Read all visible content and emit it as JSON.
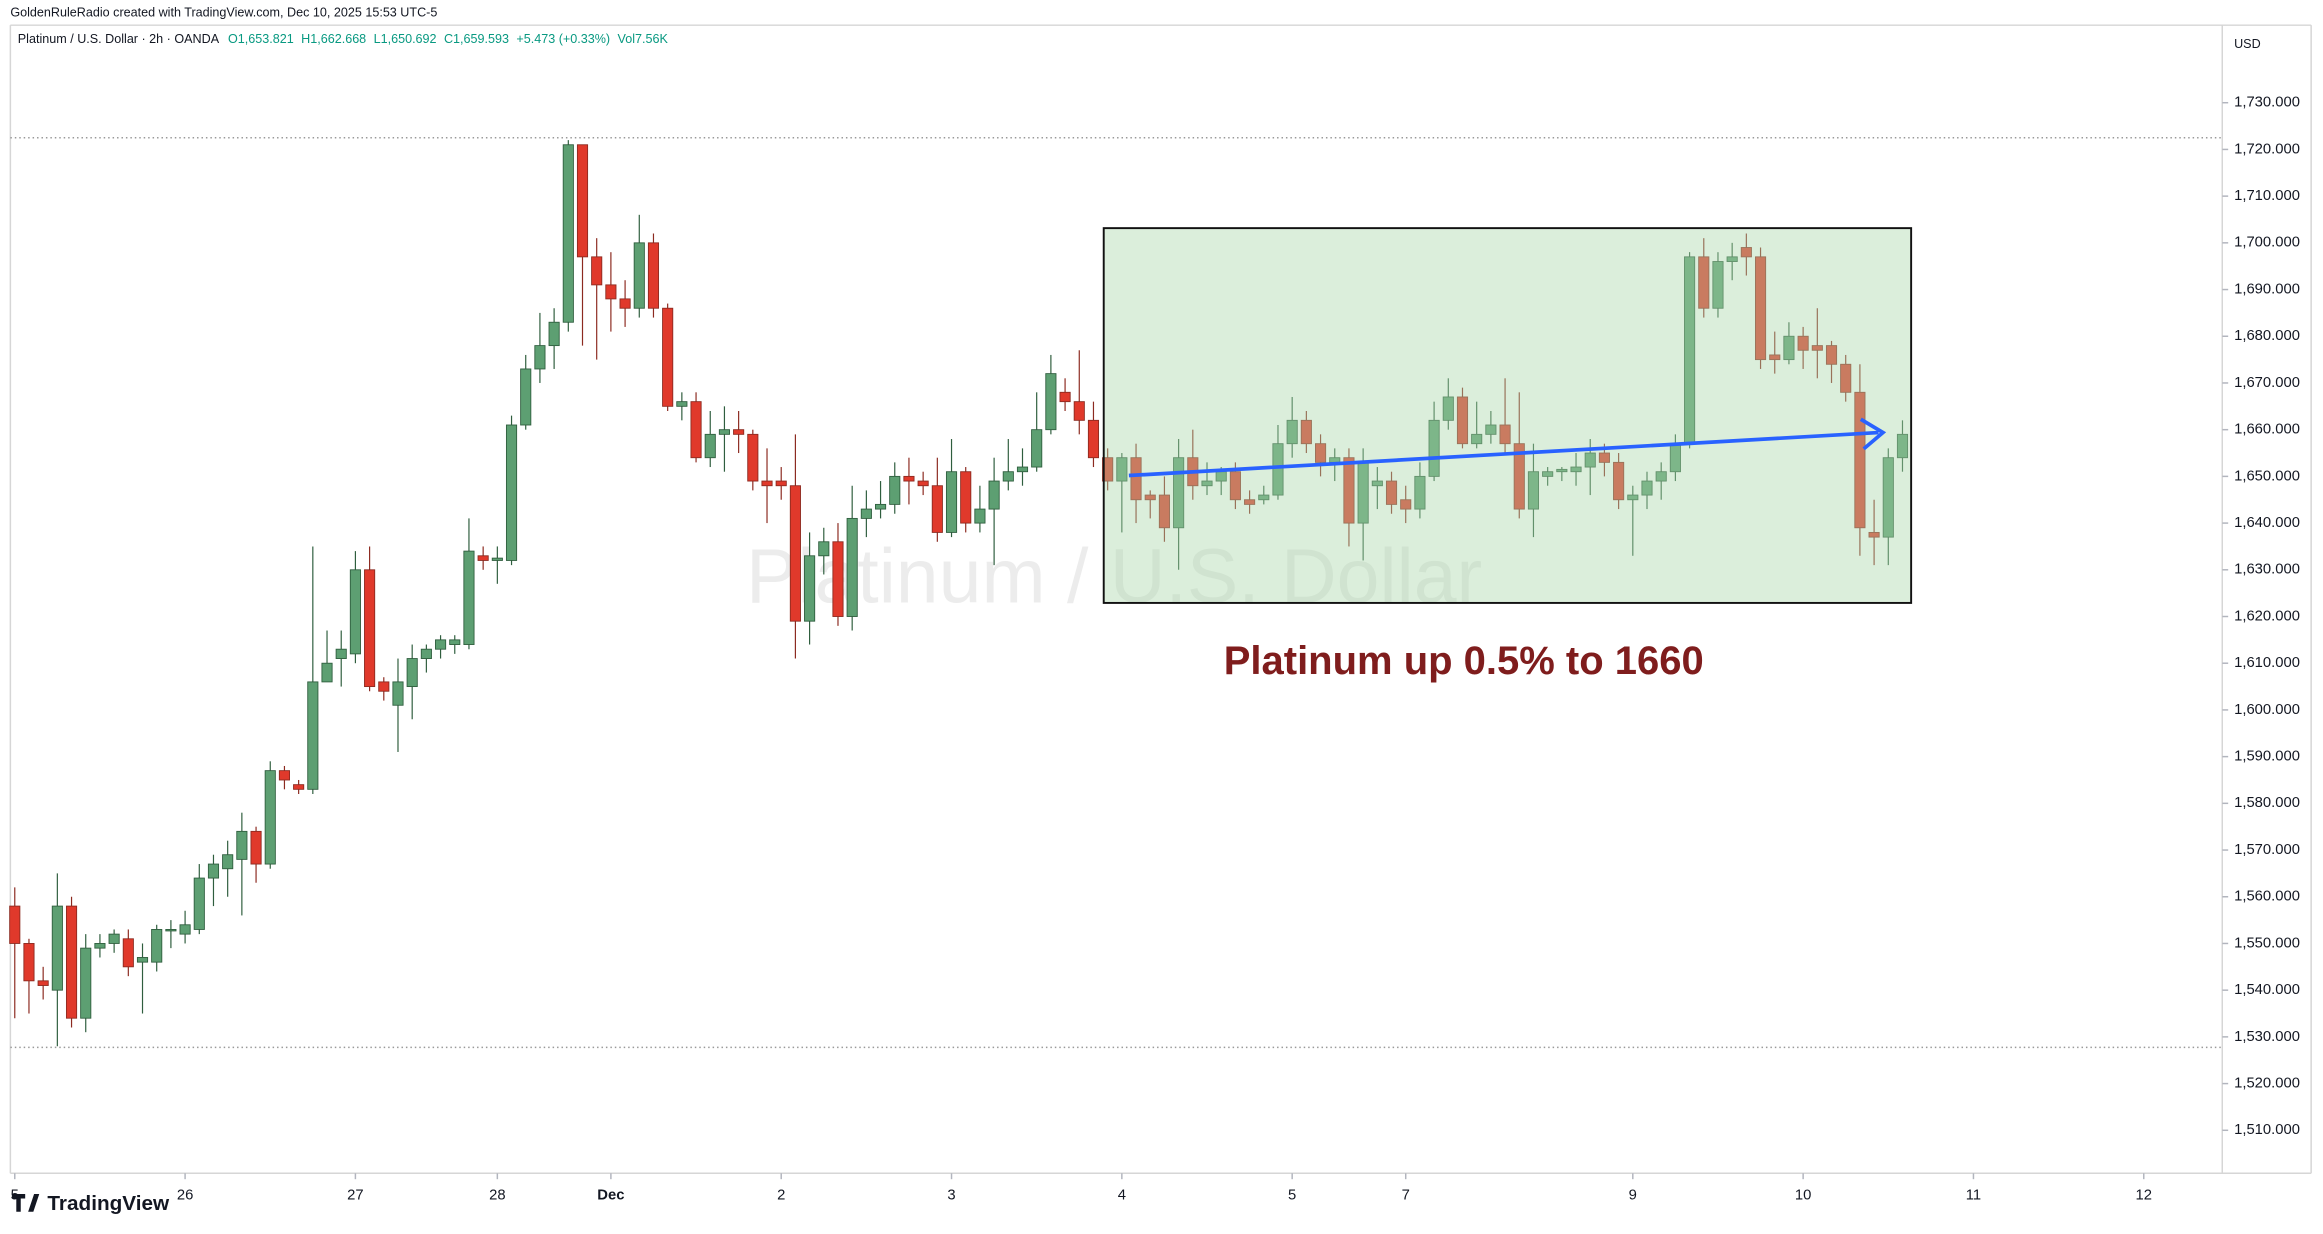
{
  "chart_data": {
    "type": "candlestick",
    "subtitle": "GoldenRuleRadio created with TradingView.com, Dec 10, 2025 15:53 UTC-5",
    "title": "Platinum / U.S. Dollar · 2h · OANDA",
    "legend_values": [
      "O1,653.821",
      "H1,662.668",
      "L1,650.692",
      "C1,659.593",
      "+5.473 (+0.33%)",
      "Vol7.56K"
    ],
    "watermark": "Platinum / U.S. Dollar",
    "annotation": "Platinum up 0.5% to 1660",
    "currency": "USD",
    "up_color": "#5d9f72",
    "down_color": "#e0392b",
    "open": [
      1558,
      1550,
      1542,
      1540,
      1558,
      1534,
      1549,
      1550,
      1551,
      1546,
      1546,
      1553,
      1552,
      1553,
      1564,
      1566,
      1568,
      1574,
      1567,
      1587,
      1584,
      1583,
      1606,
      1611,
      1612,
      1630,
      1606,
      1601,
      1605,
      1611,
      1613,
      1614,
      1614,
      1633,
      1632,
      1632,
      1661,
      1673,
      1678,
      1683,
      1721,
      1697,
      1691,
      1688,
      1686,
      1700,
      1686,
      1665,
      1666,
      1654,
      1659,
      1660,
      1659,
      1649,
      1649,
      1648,
      1619,
      1633,
      1636,
      1620,
      1641,
      1643,
      1644,
      1650,
      1649,
      1648,
      1638,
      1651,
      1640,
      1643,
      1649,
      1651,
      1652,
      1660,
      1668,
      1666,
      1662,
      1654,
      1649,
      1654,
      1646,
      1646,
      1639,
      1654,
      1648,
      1649,
      1651,
      1645,
      1645,
      1646,
      1657,
      1662,
      1657,
      1653,
      1654,
      1640,
      1648,
      1649,
      1645,
      1643,
      1650,
      1662,
      1667,
      1657,
      1659,
      1661,
      1657,
      1643,
      1650,
      1651,
      1651,
      1652,
      1655,
      1653,
      1645,
      1646,
      1649,
      1651,
      1657,
      1697,
      1686,
      1696,
      1699,
      1697,
      1676,
      1675,
      1680,
      1678,
      1678,
      1674,
      1668,
      1638,
      1637,
      1654
    ],
    "high": [
      1562,
      1551,
      1545,
      1565,
      1560,
      1552,
      1552,
      1553,
      1553,
      1550,
      1554,
      1555,
      1557,
      1567,
      1569,
      1572,
      1578,
      1575,
      1589,
      1588,
      1585,
      1635,
      1617,
      1617,
      1634,
      1635,
      1607,
      1611,
      1614,
      1614,
      1616,
      1616,
      1641,
      1635,
      1635,
      1663,
      1676,
      1685,
      1686,
      1722,
      1721,
      1701,
      1698,
      1692,
      1706,
      1702,
      1687,
      1668,
      1668,
      1664,
      1665,
      1664,
      1660,
      1656,
      1652,
      1659,
      1638,
      1639,
      1640,
      1648,
      1647,
      1649,
      1653,
      1654,
      1651,
      1654,
      1658,
      1652,
      1648,
      1654,
      1658,
      1656,
      1668,
      1676,
      1671,
      1677,
      1666,
      1656,
      1655,
      1657,
      1647,
      1650,
      1658,
      1660,
      1653,
      1652,
      1653,
      1647,
      1648,
      1661,
      1667,
      1664,
      1659,
      1656,
      1656,
      1656,
      1652,
      1651,
      1648,
      1653,
      1666,
      1671,
      1669,
      1666,
      1664,
      1671,
      1668,
      1657,
      1652,
      1652,
      1655,
      1658,
      1657,
      1655,
      1648,
      1651,
      1653,
      1659,
      1698,
      1701,
      1698,
      1700,
      1702,
      1699,
      1681,
      1683,
      1682,
      1686,
      1679,
      1676,
      1674,
      1645,
      1656,
      1662
    ],
    "low": [
      1534,
      1535,
      1538,
      1528,
      1532,
      1531,
      1547,
      1548,
      1543,
      1535,
      1544,
      1549,
      1550,
      1552,
      1558,
      1560,
      1556,
      1563,
      1566,
      1583,
      1582,
      1582,
      1606,
      1605,
      1610,
      1604,
      1602,
      1591,
      1598,
      1608,
      1611,
      1612,
      1613,
      1630,
      1627,
      1631,
      1660,
      1670,
      1673,
      1681,
      1678,
      1675,
      1681,
      1682,
      1684,
      1684,
      1664,
      1662,
      1653,
      1652,
      1651,
      1655,
      1647,
      1640,
      1645,
      1611,
      1614,
      1629,
      1618,
      1617,
      1637,
      1641,
      1642,
      1644,
      1646,
      1636,
      1637,
      1638,
      1638,
      1631,
      1647,
      1648,
      1651,
      1659,
      1664,
      1659,
      1652,
      1647,
      1638,
      1640,
      1641,
      1636,
      1630,
      1645,
      1646,
      1646,
      1643,
      1642,
      1644,
      1645,
      1654,
      1655,
      1650,
      1649,
      1635,
      1632,
      1643,
      1642,
      1640,
      1641,
      1649,
      1660,
      1656,
      1656,
      1657,
      1655,
      1641,
      1637,
      1648,
      1649,
      1648,
      1646,
      1650,
      1643,
      1633,
      1643,
      1645,
      1649,
      1656,
      1684,
      1684,
      1692,
      1693,
      1673,
      1672,
      1674,
      1673,
      1671,
      1670,
      1666,
      1633,
      1631,
      1631,
      1651
    ],
    "close": [
      1550,
      1542,
      1541,
      1558,
      1534,
      1549,
      1550,
      1552,
      1545,
      1547,
      1553,
      1553,
      1554,
      1564,
      1567,
      1569,
      1574,
      1567,
      1587,
      1585,
      1583,
      1606,
      1610,
      1613,
      1630,
      1605,
      1604,
      1606,
      1611,
      1613,
      1615,
      1615,
      1634,
      1632,
      1632.5,
      1661,
      1673,
      1678,
      1683,
      1721,
      1697,
      1691,
      1688,
      1686,
      1700,
      1686,
      1665,
      1666,
      1654,
      1659,
      1660,
      1659,
      1649,
      1648,
      1648,
      1619,
      1633,
      1636,
      1620,
      1641,
      1643,
      1644,
      1650,
      1649,
      1648,
      1638,
      1651,
      1640,
      1643,
      1649,
      1651,
      1652,
      1660,
      1672,
      1666,
      1662,
      1654,
      1649,
      1654,
      1645,
      1645,
      1639,
      1654,
      1648,
      1649,
      1651,
      1645,
      1644,
      1646,
      1657,
      1662,
      1657,
      1653,
      1654,
      1640,
      1653,
      1649,
      1644,
      1643,
      1650,
      1662,
      1667,
      1657,
      1659,
      1661,
      1657,
      1643,
      1651,
      1651,
      1651.5,
      1652,
      1655,
      1653,
      1645,
      1646,
      1649,
      1651,
      1657,
      1697,
      1686,
      1696,
      1697,
      1697,
      1675,
      1675,
      1680,
      1677,
      1677,
      1674,
      1668,
      1639,
      1637,
      1654,
      1659
    ],
    "xlim": [
      -0.31,
      155.53
    ],
    "xticks": [
      {
        "value": 0,
        "label": "5"
      },
      {
        "value": 12,
        "label": "26"
      },
      {
        "value": 24,
        "label": "27"
      },
      {
        "value": 34,
        "label": "28"
      },
      {
        "value": 42,
        "label": "Dec"
      },
      {
        "value": 54,
        "label": "2"
      },
      {
        "value": 66,
        "label": "3"
      },
      {
        "value": 78,
        "label": "4"
      },
      {
        "value": 90,
        "label": "5"
      },
      {
        "value": 98,
        "label": "7"
      },
      {
        "value": 114,
        "label": "9"
      },
      {
        "value": 126,
        "label": "10"
      },
      {
        "value": 138,
        "label": "11"
      },
      {
        "value": 150,
        "label": "12"
      }
    ],
    "ylim": [
      1500.8,
      1746.6
    ],
    "yticks": [
      {
        "value": 1510,
        "label": "1,510.000"
      },
      {
        "value": 1520,
        "label": "1,520.000"
      },
      {
        "value": 1530,
        "label": "1,530.000"
      },
      {
        "value": 1540,
        "label": "1,540.000"
      },
      {
        "value": 1550,
        "label": "1,550.000"
      },
      {
        "value": 1560,
        "label": "1,560.000"
      },
      {
        "value": 1570,
        "label": "1,570.000"
      },
      {
        "value": 1580,
        "label": "1,580.000"
      },
      {
        "value": 1590,
        "label": "1,590.000"
      },
      {
        "value": 1600,
        "label": "1,600.000"
      },
      {
        "value": 1610,
        "label": "1,610.000"
      },
      {
        "value": 1620,
        "label": "1,620.000"
      },
      {
        "value": 1630,
        "label": "1,630.000"
      },
      {
        "value": 1640,
        "label": "1,640.000"
      },
      {
        "value": 1650,
        "label": "1,650.000"
      },
      {
        "value": 1660,
        "label": "1,660.000"
      },
      {
        "value": 1670,
        "label": "1,670.000"
      },
      {
        "value": 1680,
        "label": "1,680.000"
      },
      {
        "value": 1690,
        "label": "1,690.000"
      },
      {
        "value": 1700,
        "label": "1,700.000"
      },
      {
        "value": 1710,
        "label": "1,710.000"
      },
      {
        "value": 1720,
        "label": "1,720.000"
      },
      {
        "value": 1730,
        "label": "1,730.000"
      }
    ]
  },
  "footer": {
    "logo": "TradingView"
  }
}
